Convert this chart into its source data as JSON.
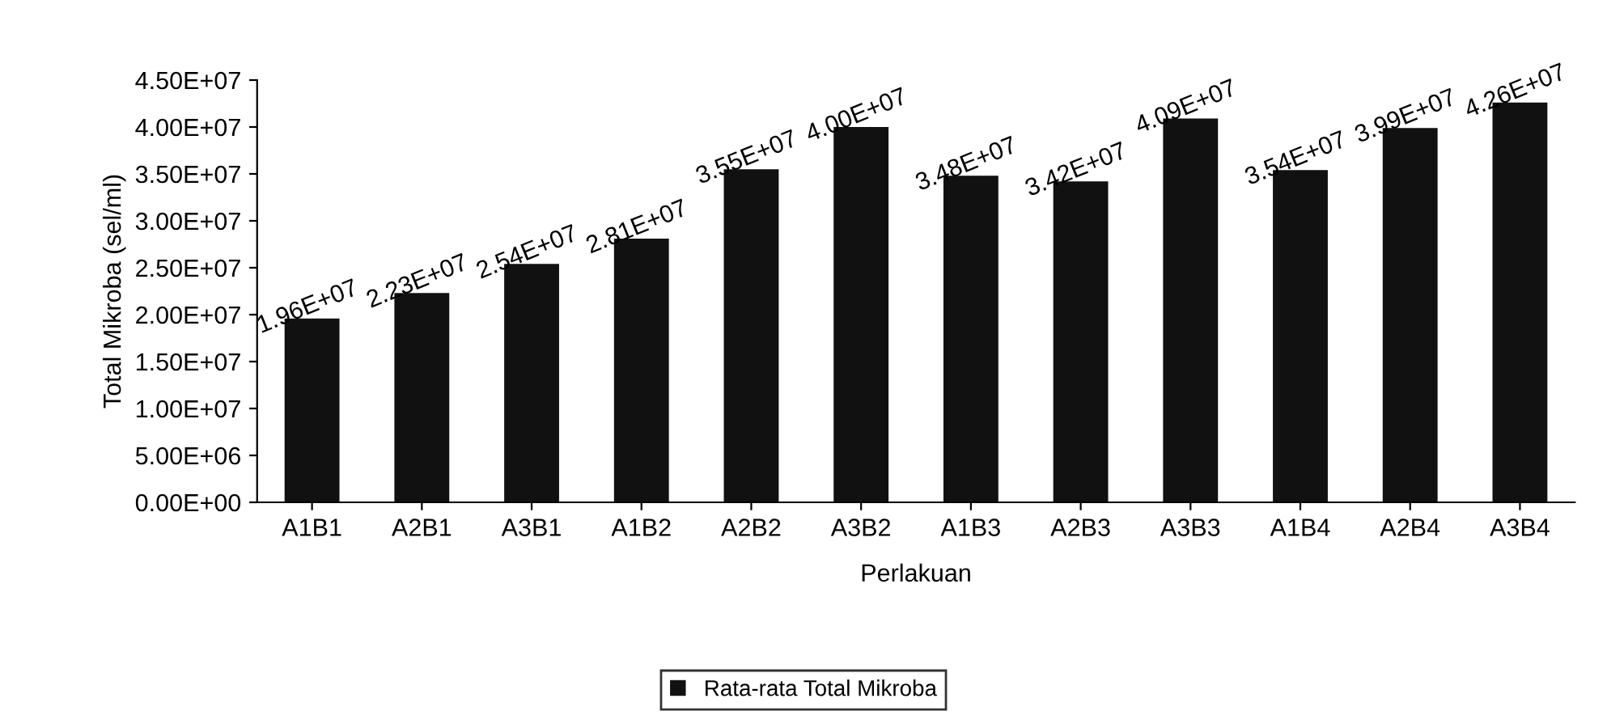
{
  "chart_data": {
    "type": "bar",
    "xlabel": "Perlakuan",
    "ylabel": "Total Mikroba (sel/ml)",
    "categories": [
      "A1B1",
      "A2B1",
      "A3B1",
      "A1B2",
      "A2B2",
      "A3B2",
      "A1B3",
      "A2B3",
      "A3B3",
      "A1B4",
      "A2B4",
      "A3B4"
    ],
    "series": [
      {
        "name": "Rata-rata Total Mikroba",
        "color": "#111111",
        "values": [
          19600000,
          22300000,
          25400000,
          28100000,
          35500000,
          40000000,
          34800000,
          34200000,
          40900000,
          35400000,
          39900000,
          42600000
        ],
        "value_labels": [
          "1.96E+07",
          "2.23E+07",
          "2.54E+07",
          "2.81E+07",
          "3.55E+07",
          "4.00E+07",
          "3.48E+07",
          "3.42E+07",
          "4.09E+07",
          "3.54E+07",
          "3.99E+07",
          "4.26E+07"
        ]
      }
    ],
    "ylim": [
      0,
      45000000
    ],
    "yticks": [
      {
        "value": 0,
        "label": "0.00E+00"
      },
      {
        "value": 5000000,
        "label": "5.00E+06"
      },
      {
        "value": 10000000,
        "label": "1.00E+07"
      },
      {
        "value": 15000000,
        "label": "1.50E+07"
      },
      {
        "value": 20000000,
        "label": "2.00E+07"
      },
      {
        "value": 25000000,
        "label": "2.50E+07"
      },
      {
        "value": 30000000,
        "label": "3.00E+07"
      },
      {
        "value": 35000000,
        "label": "3.50E+07"
      },
      {
        "value": 40000000,
        "label": "4.00E+07"
      },
      {
        "value": 45000000,
        "label": "4.50E+07"
      }
    ],
    "grid": false,
    "legend": "bottom"
  }
}
